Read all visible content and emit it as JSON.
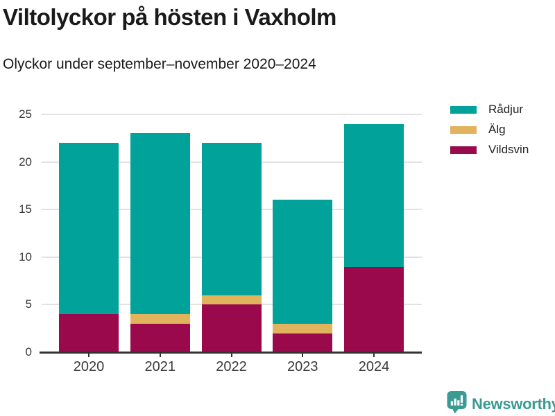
{
  "title": "Viltolyckor på hösten i Vaxholm",
  "subtitle": "Olyckor under september–november 2020–2024",
  "chart_data": {
    "type": "bar",
    "stacked": true,
    "categories": [
      "2020",
      "2021",
      "2022",
      "2023",
      "2024"
    ],
    "series": [
      {
        "name": "Vildsvin",
        "color": "#99094c",
        "values": [
          4,
          3,
          5,
          2,
          9
        ]
      },
      {
        "name": "Älg",
        "color": "#e0b35c",
        "values": [
          0,
          1,
          1,
          1,
          0
        ]
      },
      {
        "name": "Rådjur",
        "color": "#00a299",
        "values": [
          18,
          19,
          16,
          13,
          15
        ]
      }
    ],
    "totals": [
      22,
      23,
      22,
      16,
      24
    ],
    "title": "Viltolyckor på hösten i Vaxholm",
    "subtitle": "Olyckor under september–november 2020–2024",
    "xlabel": "",
    "ylabel": "",
    "yticks": [
      0,
      5,
      10,
      15,
      20,
      25
    ],
    "ylim": [
      0,
      25
    ],
    "grid": true,
    "legend_position": "right-top",
    "legend_order": [
      "Rådjur",
      "Älg",
      "Vildsvin"
    ]
  },
  "legend": {
    "items": [
      "Rådjur",
      "Älg",
      "Vildsvin"
    ]
  },
  "branding": {
    "logo_text": "Newsworthy",
    "color": "#3a9b94"
  },
  "colors": {
    "axis": "#333333",
    "grid": "#e2e2e2",
    "tick_text": "#3a3a3a",
    "title_text": "#1a1a1a"
  }
}
